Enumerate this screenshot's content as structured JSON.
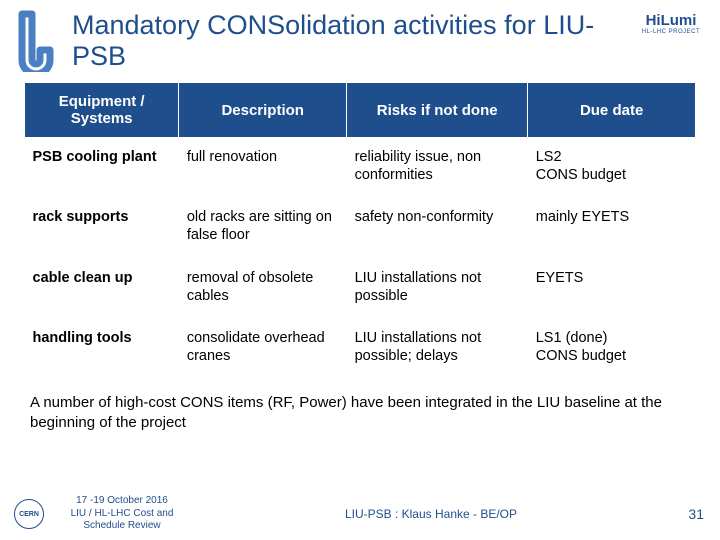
{
  "colors": {
    "brand_blue": "#1f4e8c",
    "header_bg": "#1f4e8c",
    "header_fg": "#ffffff",
    "body_text": "#000000",
    "page_bg": "#ffffff"
  },
  "title": "Mandatory CONSolidation activities for LIU-PSB",
  "logo_right": {
    "big": "HiLumi",
    "small": "HL-LHC PROJECT"
  },
  "table": {
    "columns": [
      "Equipment / Systems",
      "Description",
      "Risks if not done",
      "Due date"
    ],
    "col_widths_pct": [
      23,
      25,
      27,
      25
    ],
    "rows": [
      [
        "PSB cooling plant",
        "full renovation",
        "reliability issue, non conformities",
        "LS2\nCONS budget"
      ],
      [
        "rack supports",
        "old racks are sitting on false floor",
        "safety non-conformity",
        "mainly EYETS"
      ],
      [
        "cable clean up",
        "removal of obsolete cables",
        "LIU installations not possible",
        "EYETS"
      ],
      [
        "handling tools",
        "consolidate overhead cranes",
        "LIU installations not possible; delays",
        "LS1 (done)\nCONS budget"
      ]
    ],
    "header_fontsize_pt": 11,
    "cell_fontsize_pt": 11
  },
  "note": "A number of high-cost CONS items (RF, Power) have been integrated in the LIU baseline at the beginning of the project",
  "footer": {
    "cern": "CERN",
    "date": "17 -19 October 2016",
    "event": "LIU / HL-LHC  Cost and Schedule Review",
    "center": "LIU-PSB : Klaus Hanke - BE/OP",
    "page": "31"
  }
}
